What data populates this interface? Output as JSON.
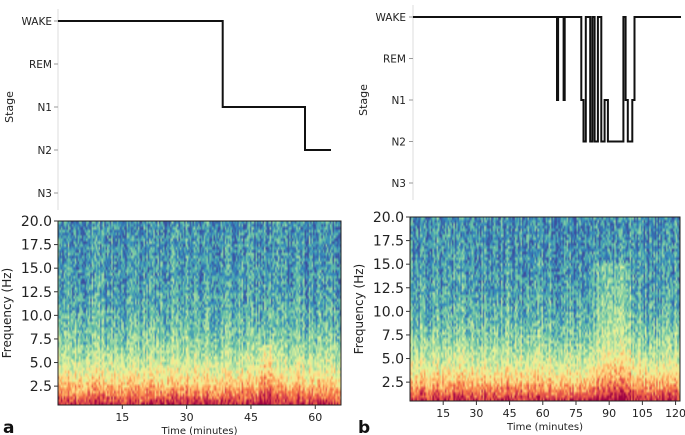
{
  "panels": [
    {
      "letter": "a",
      "hypnogram": {
        "type": "line",
        "ylabel": "Stage",
        "stages": [
          "WAKE",
          "REM",
          "N1",
          "N2",
          "N3"
        ],
        "x": [
          0,
          38,
          38,
          57,
          57,
          63
        ],
        "y": [
          "WAKE",
          "WAKE",
          "N1",
          "N1",
          "N2",
          "N2"
        ],
        "xlim": [
          0,
          63
        ]
      },
      "spectrogram": {
        "type": "heatmap",
        "ylabel": "Frequency (Hz)",
        "xlabel": "Time (minutes)",
        "yticks": [
          "20.0",
          "17.5",
          "15.0",
          "12.5",
          "10.0",
          "7.5",
          "5.0",
          "2.5"
        ],
        "ytick_values": [
          20.0,
          17.5,
          15.0,
          12.5,
          10.0,
          7.5,
          5.0,
          2.5
        ],
        "xticks": [
          "15",
          "30",
          "45",
          "60"
        ],
        "xtick_values": [
          15,
          30,
          45,
          60
        ],
        "xlim": [
          0,
          66
        ],
        "ylim": [
          0.5,
          20.0
        ],
        "colormap": [
          "#3b4fa0",
          "#3288bd",
          "#66c2a5",
          "#abdda4",
          "#e6f598",
          "#fee08b",
          "#fdae61",
          "#f46d43",
          "#d53e4f",
          "#9e0142"
        ]
      }
    },
    {
      "letter": "b",
      "hypnogram": {
        "type": "line",
        "ylabel": "Stage",
        "stages": [
          "WAKE",
          "REM",
          "N1",
          "N2",
          "N3"
        ],
        "x": [
          0,
          65,
          65,
          65.5,
          65.5,
          68,
          68,
          68.5,
          68.5,
          76,
          76,
          77,
          77,
          78,
          78,
          80,
          80,
          81,
          81,
          82,
          82,
          83.5,
          83.5,
          85,
          85,
          86.5,
          86.5,
          88,
          88,
          95,
          95,
          96,
          96,
          97,
          97,
          99,
          99,
          100,
          100,
          121
        ],
        "y": [
          "WAKE",
          "WAKE",
          "N1",
          "N1",
          "WAKE",
          "WAKE",
          "N1",
          "N1",
          "WAKE",
          "WAKE",
          "N1",
          "N1",
          "N2",
          "N2",
          "WAKE",
          "WAKE",
          "N2",
          "N2",
          "WAKE",
          "WAKE",
          "N2",
          "N2",
          "WAKE",
          "WAKE",
          "N2",
          "N2",
          "N1",
          "N1",
          "N2",
          "N2",
          "WAKE",
          "WAKE",
          "N1",
          "N1",
          "N2",
          "N2",
          "N1",
          "N1",
          "WAKE",
          "WAKE"
        ],
        "xlim": [
          0,
          121
        ]
      },
      "spectrogram": {
        "type": "heatmap",
        "ylabel": "Frequency (Hz)",
        "xlabel": "Time (minutes)",
        "yticks": [
          "20.0",
          "17.5",
          "15.0",
          "12.5",
          "10.0",
          "7.5",
          "5.0",
          "2.5"
        ],
        "ytick_values": [
          20.0,
          17.5,
          15.0,
          12.5,
          10.0,
          7.5,
          5.0,
          2.5
        ],
        "xticks": [
          "15",
          "30",
          "45",
          "60",
          "75",
          "90",
          "105",
          "120"
        ],
        "xtick_values": [
          15,
          30,
          45,
          60,
          75,
          90,
          105,
          120
        ],
        "xlim": [
          0,
          122
        ],
        "ylim": [
          0.5,
          20.0
        ],
        "colormap": [
          "#3b4fa0",
          "#3288bd",
          "#66c2a5",
          "#abdda4",
          "#e6f598",
          "#fee08b",
          "#fdae61",
          "#f46d43",
          "#d53e4f",
          "#9e0142"
        ]
      }
    }
  ]
}
